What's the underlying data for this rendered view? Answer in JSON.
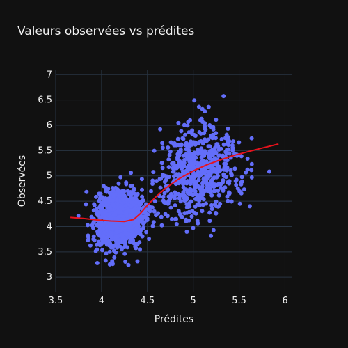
{
  "chart_data": {
    "type": "scatter",
    "title": "Valeurs observées vs prédites",
    "xlabel": "Prédites",
    "ylabel": "Observées",
    "xlim": [
      3.5,
      6.08
    ],
    "ylim": [
      2.7,
      7.1
    ],
    "xticks": [
      3.5,
      4,
      4.5,
      5,
      5.5,
      6
    ],
    "yticks": [
      3,
      3.5,
      4,
      4.5,
      5,
      5.5,
      6,
      6.5,
      7
    ],
    "grid": true,
    "legend": "none",
    "colors": {
      "points": "#636efa",
      "trend": "#e8121c",
      "background": "#111111",
      "grid": "#283442"
    },
    "clusters": [
      {
        "name": "",
        "center_x": 4.2,
        "center_y": 4.15,
        "spread_x": 0.13,
        "spread_y": 0.28,
        "count": 1100
      },
      {
        "name": "",
        "center_x": 5.05,
        "center_y": 5.1,
        "spread_x": 0.22,
        "spread_y": 0.42,
        "count": 650
      }
    ],
    "trend_line": {
      "x": [
        3.66,
        3.8,
        3.95,
        4.1,
        4.25,
        4.35,
        4.42,
        4.5,
        4.6,
        4.7,
        4.85,
        5.0,
        5.15,
        5.3,
        5.45,
        5.6,
        5.75,
        5.93
      ],
      "y": [
        4.18,
        4.16,
        4.13,
        4.11,
        4.1,
        4.14,
        4.25,
        4.42,
        4.6,
        4.76,
        4.95,
        5.1,
        5.22,
        5.32,
        5.41,
        5.48,
        5.55,
        5.63
      ]
    }
  }
}
